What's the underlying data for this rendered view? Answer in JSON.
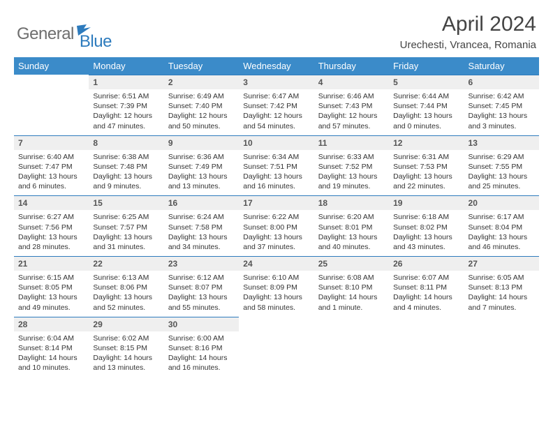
{
  "logo": {
    "text1": "General",
    "text2": "Blue",
    "color1": "#6e6e6e",
    "color2": "#2d7bbd"
  },
  "title": "April 2024",
  "location": "Urechesti, Vrancea, Romania",
  "colors": {
    "header_bg": "#3b8bc9",
    "header_text": "#ffffff",
    "daynum_bg": "#efefef",
    "daynum_border": "#2d7bbd",
    "text": "#333333"
  },
  "dayNames": [
    "Sunday",
    "Monday",
    "Tuesday",
    "Wednesday",
    "Thursday",
    "Friday",
    "Saturday"
  ],
  "weeks": [
    [
      null,
      {
        "n": "1",
        "sunrise": "6:51 AM",
        "sunset": "7:39 PM",
        "daylight": "12 hours and 47 minutes."
      },
      {
        "n": "2",
        "sunrise": "6:49 AM",
        "sunset": "7:40 PM",
        "daylight": "12 hours and 50 minutes."
      },
      {
        "n": "3",
        "sunrise": "6:47 AM",
        "sunset": "7:42 PM",
        "daylight": "12 hours and 54 minutes."
      },
      {
        "n": "4",
        "sunrise": "6:46 AM",
        "sunset": "7:43 PM",
        "daylight": "12 hours and 57 minutes."
      },
      {
        "n": "5",
        "sunrise": "6:44 AM",
        "sunset": "7:44 PM",
        "daylight": "13 hours and 0 minutes."
      },
      {
        "n": "6",
        "sunrise": "6:42 AM",
        "sunset": "7:45 PM",
        "daylight": "13 hours and 3 minutes."
      }
    ],
    [
      {
        "n": "7",
        "sunrise": "6:40 AM",
        "sunset": "7:47 PM",
        "daylight": "13 hours and 6 minutes."
      },
      {
        "n": "8",
        "sunrise": "6:38 AM",
        "sunset": "7:48 PM",
        "daylight": "13 hours and 9 minutes."
      },
      {
        "n": "9",
        "sunrise": "6:36 AM",
        "sunset": "7:49 PM",
        "daylight": "13 hours and 13 minutes."
      },
      {
        "n": "10",
        "sunrise": "6:34 AM",
        "sunset": "7:51 PM",
        "daylight": "13 hours and 16 minutes."
      },
      {
        "n": "11",
        "sunrise": "6:33 AM",
        "sunset": "7:52 PM",
        "daylight": "13 hours and 19 minutes."
      },
      {
        "n": "12",
        "sunrise": "6:31 AM",
        "sunset": "7:53 PM",
        "daylight": "13 hours and 22 minutes."
      },
      {
        "n": "13",
        "sunrise": "6:29 AM",
        "sunset": "7:55 PM",
        "daylight": "13 hours and 25 minutes."
      }
    ],
    [
      {
        "n": "14",
        "sunrise": "6:27 AM",
        "sunset": "7:56 PM",
        "daylight": "13 hours and 28 minutes."
      },
      {
        "n": "15",
        "sunrise": "6:25 AM",
        "sunset": "7:57 PM",
        "daylight": "13 hours and 31 minutes."
      },
      {
        "n": "16",
        "sunrise": "6:24 AM",
        "sunset": "7:58 PM",
        "daylight": "13 hours and 34 minutes."
      },
      {
        "n": "17",
        "sunrise": "6:22 AM",
        "sunset": "8:00 PM",
        "daylight": "13 hours and 37 minutes."
      },
      {
        "n": "18",
        "sunrise": "6:20 AM",
        "sunset": "8:01 PM",
        "daylight": "13 hours and 40 minutes."
      },
      {
        "n": "19",
        "sunrise": "6:18 AM",
        "sunset": "8:02 PM",
        "daylight": "13 hours and 43 minutes."
      },
      {
        "n": "20",
        "sunrise": "6:17 AM",
        "sunset": "8:04 PM",
        "daylight": "13 hours and 46 minutes."
      }
    ],
    [
      {
        "n": "21",
        "sunrise": "6:15 AM",
        "sunset": "8:05 PM",
        "daylight": "13 hours and 49 minutes."
      },
      {
        "n": "22",
        "sunrise": "6:13 AM",
        "sunset": "8:06 PM",
        "daylight": "13 hours and 52 minutes."
      },
      {
        "n": "23",
        "sunrise": "6:12 AM",
        "sunset": "8:07 PM",
        "daylight": "13 hours and 55 minutes."
      },
      {
        "n": "24",
        "sunrise": "6:10 AM",
        "sunset": "8:09 PM",
        "daylight": "13 hours and 58 minutes."
      },
      {
        "n": "25",
        "sunrise": "6:08 AM",
        "sunset": "8:10 PM",
        "daylight": "14 hours and 1 minute."
      },
      {
        "n": "26",
        "sunrise": "6:07 AM",
        "sunset": "8:11 PM",
        "daylight": "14 hours and 4 minutes."
      },
      {
        "n": "27",
        "sunrise": "6:05 AM",
        "sunset": "8:13 PM",
        "daylight": "14 hours and 7 minutes."
      }
    ],
    [
      {
        "n": "28",
        "sunrise": "6:04 AM",
        "sunset": "8:14 PM",
        "daylight": "14 hours and 10 minutes."
      },
      {
        "n": "29",
        "sunrise": "6:02 AM",
        "sunset": "8:15 PM",
        "daylight": "14 hours and 13 minutes."
      },
      {
        "n": "30",
        "sunrise": "6:00 AM",
        "sunset": "8:16 PM",
        "daylight": "14 hours and 16 minutes."
      },
      null,
      null,
      null,
      null
    ]
  ],
  "labels": {
    "sunrise": "Sunrise:",
    "sunset": "Sunset:",
    "daylight": "Daylight:"
  }
}
